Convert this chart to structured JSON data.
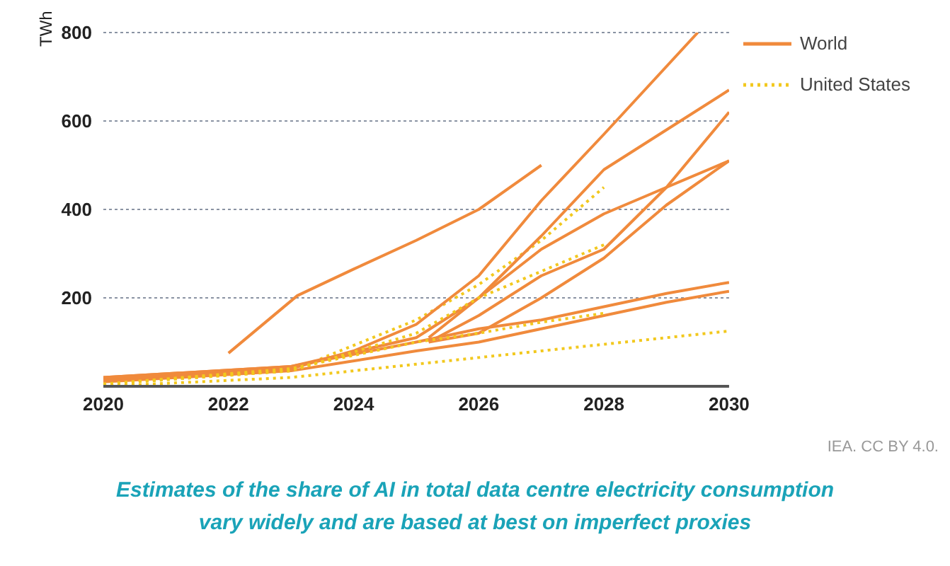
{
  "chart_data": {
    "type": "line",
    "ylabel": "TWh",
    "xlim": [
      2020,
      2030
    ],
    "xticks": [
      2020,
      2022,
      2024,
      2026,
      2028,
      2030
    ],
    "ylim": [
      0,
      800
    ],
    "yticks": [
      200,
      400,
      600,
      800
    ],
    "grid": "y",
    "legend": "top right",
    "marker": "none",
    "series": [
      {
        "name": "World",
        "color": "#f08a3c",
        "line_style": "solid",
        "x": [
          2022,
          2023.1,
          2024,
          2025,
          2026,
          2027
        ],
        "values": [
          75,
          205,
          265,
          330,
          400,
          500
        ]
      },
      {
        "name": "United States",
        "color": "#f2c81e",
        "line_style": "dotted",
        "x": [
          2020,
          2023,
          2025,
          2026,
          2027,
          2028
        ],
        "values": [
          5,
          35,
          150,
          230,
          330,
          450
        ]
      },
      {
        "color": "#f08a3c",
        "line_style": "solid",
        "x": [
          2020,
          2023,
          2024,
          2025,
          2026,
          2027,
          2028,
          2029.5
        ],
        "values": [
          15,
          40,
          80,
          140,
          250,
          420,
          570,
          800
        ]
      },
      {
        "color": "#f08a3c",
        "line_style": "solid",
        "x": [
          2020,
          2023,
          2025,
          2026,
          2027,
          2028,
          2029,
          2030
        ],
        "values": [
          20,
          45,
          110,
          200,
          340,
          490,
          580,
          670
        ]
      },
      {
        "color": "#f08a3c",
        "line_style": "solid",
        "x": [
          2025.2,
          2026,
          2027,
          2028,
          2029,
          2030
        ],
        "values": [
          100,
          160,
          250,
          310,
          450,
          620
        ]
      },
      {
        "color": "#f08a3c",
        "line_style": "solid",
        "x": [
          2025.2,
          2026,
          2027,
          2028,
          2029,
          2030
        ],
        "values": [
          110,
          200,
          310,
          390,
          450,
          510
        ]
      },
      {
        "color": "#f08a3c",
        "line_style": "solid",
        "x": [
          2025.2,
          2026,
          2027,
          2028,
          2029,
          2030
        ],
        "values": [
          100,
          120,
          200,
          290,
          410,
          510
        ]
      },
      {
        "color": "#f08a3c",
        "line_style": "solid",
        "x": [
          2020,
          2023,
          2025,
          2026,
          2027,
          2028,
          2029,
          2030
        ],
        "values": [
          20,
          45,
          100,
          130,
          150,
          180,
          210,
          235
        ]
      },
      {
        "color": "#f08a3c",
        "line_style": "solid",
        "x": [
          2020,
          2023,
          2025,
          2026,
          2027,
          2028,
          2029,
          2030
        ],
        "values": [
          10,
          35,
          80,
          100,
          130,
          160,
          190,
          215
        ]
      },
      {
        "color": "#f2c81e",
        "line_style": "dotted",
        "x": [
          2020,
          2023,
          2025,
          2026,
          2027,
          2028
        ],
        "values": [
          5,
          35,
          120,
          200,
          260,
          320
        ]
      },
      {
        "color": "#f2c81e",
        "line_style": "dotted",
        "x": [
          2020,
          2023,
          2025,
          2026,
          2027,
          2028
        ],
        "values": [
          5,
          40,
          100,
          120,
          145,
          165
        ]
      },
      {
        "color": "#f2c81e",
        "line_style": "dotted",
        "x": [
          2020,
          2023,
          2025,
          2026,
          2027,
          2028,
          2030
        ],
        "values": [
          0,
          20,
          50,
          65,
          80,
          95,
          125
        ]
      }
    ],
    "annotations": [
      "IEA. CC BY 4.0.",
      "Estimates of the share of AI in total data centre electricity consumption vary widely and are based at best on imperfect proxies"
    ]
  }
}
